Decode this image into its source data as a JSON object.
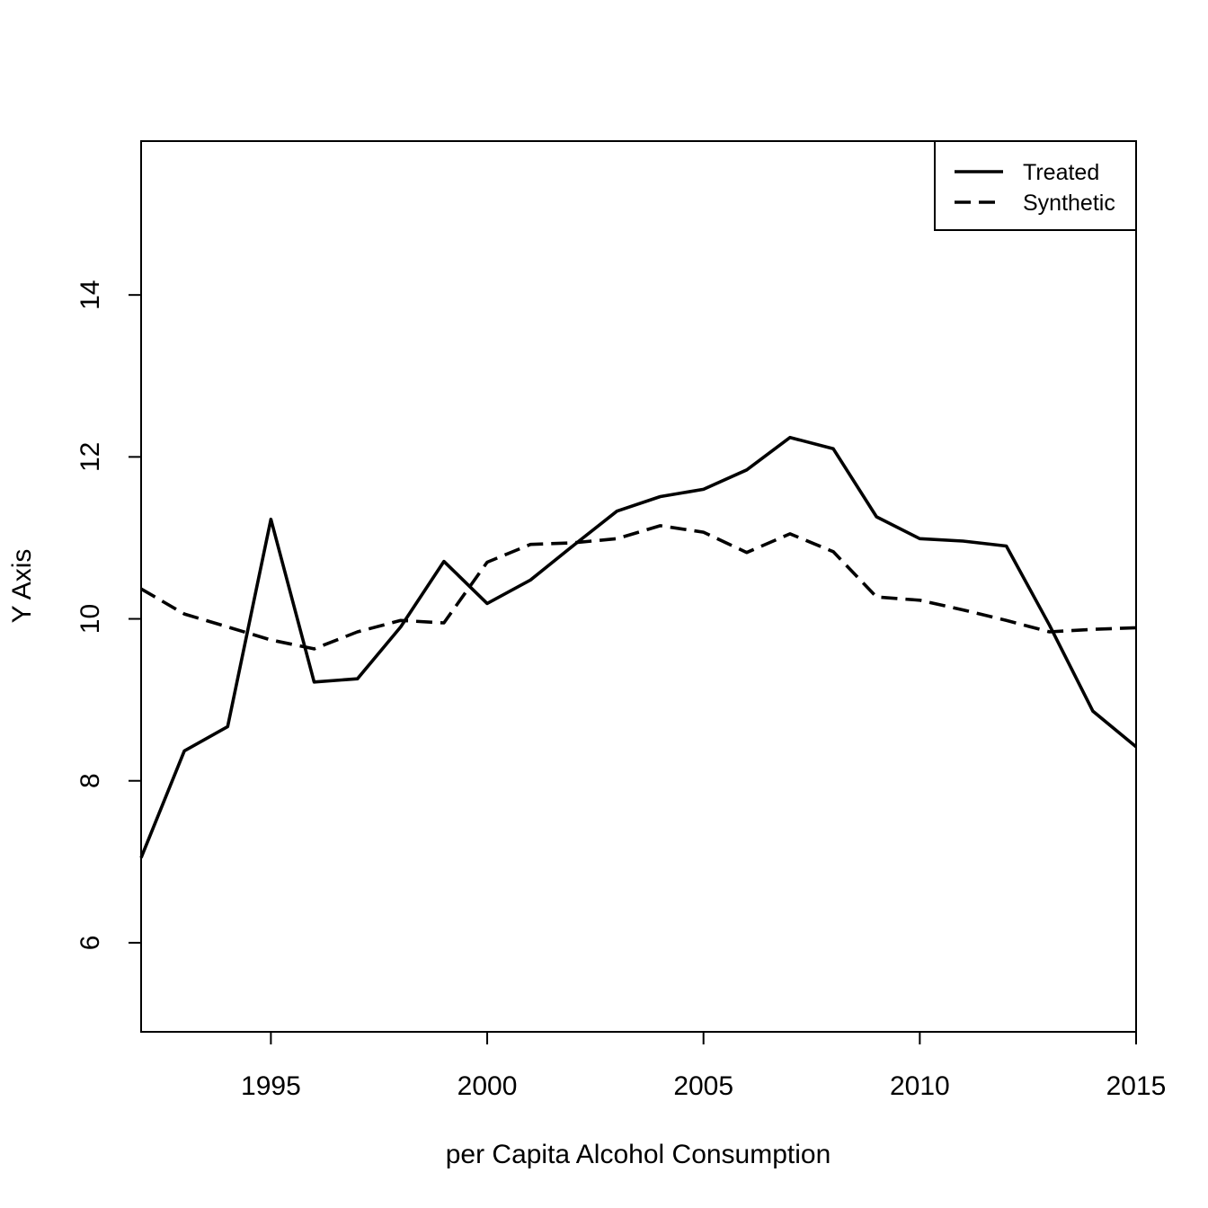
{
  "chart_data": {
    "type": "line",
    "title": "",
    "xlabel": "per Capita Alcohol Consumption",
    "ylabel": "Y Axis",
    "xlim": [
      1992,
      2015
    ],
    "ylim": [
      4.9,
      15.9
    ],
    "x_ticks": [
      1995,
      2000,
      2005,
      2010,
      2015
    ],
    "y_ticks": [
      6,
      8,
      10,
      12,
      14
    ],
    "x_tick_labels": [
      "1995",
      "2000",
      "2005",
      "2010",
      "2015"
    ],
    "y_tick_labels": [
      "6",
      "8",
      "10",
      "12",
      "14"
    ],
    "grid": false,
    "legend_position": "top-right",
    "x": [
      1992,
      1993,
      1994,
      1995,
      1996,
      1997,
      1998,
      1999,
      2000,
      2001,
      2002,
      2003,
      2004,
      2005,
      2006,
      2007,
      2008,
      2009,
      2010,
      2011,
      2012,
      2013,
      2014,
      2015
    ],
    "series": [
      {
        "name": "Treated",
        "style": "solid",
        "values": [
          7.05,
          8.37,
          8.67,
          11.23,
          9.22,
          9.26,
          9.9,
          10.71,
          10.19,
          10.48,
          10.91,
          11.33,
          11.51,
          11.6,
          11.84,
          12.24,
          12.1,
          11.26,
          10.99,
          10.96,
          10.9,
          9.92,
          8.86,
          8.42
        ]
      },
      {
        "name": "Synthetic",
        "style": "dashed",
        "values": [
          10.37,
          10.06,
          9.9,
          9.74,
          9.63,
          9.84,
          9.98,
          9.95,
          10.7,
          10.92,
          10.94,
          10.99,
          11.15,
          11.07,
          10.82,
          11.05,
          10.83,
          10.27,
          10.23,
          10.11,
          9.98,
          9.84,
          9.87,
          9.89
        ]
      }
    ]
  }
}
